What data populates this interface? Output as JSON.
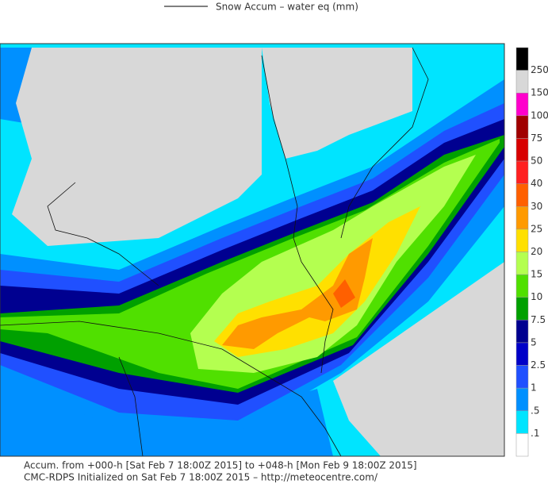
{
  "legend": {
    "label": "Snow Accum – water eq (mm)"
  },
  "colorbar": {
    "colors": [
      "#000000",
      "#d8d8d8",
      "#ff00cc",
      "#a00000",
      "#d80000",
      "#ff2020",
      "#ff6000",
      "#ff9a00",
      "#ffe000",
      "#b4ff50",
      "#50e000",
      "#00a000",
      "#000090",
      "#0000c8",
      "#2050ff",
      "#0090ff",
      "#00e4ff",
      "#ffffff"
    ],
    "labels": [
      "250",
      "150",
      "100",
      "75",
      "50",
      "40",
      "30",
      "25",
      "20",
      "15",
      "10",
      "7.5",
      "5",
      "2.5",
      "1",
      ".5",
      ".1"
    ]
  },
  "footer": {
    "lines": [
      "Accum. from +000-h [Sat Feb 7 18:00Z 2015] to +048-h [Mon Feb 9 18:00Z 2015]",
      "CMC-RDPS Initialized on Sat Feb 7 18:00Z 2015 – http://meteocentre.com/"
    ]
  }
}
